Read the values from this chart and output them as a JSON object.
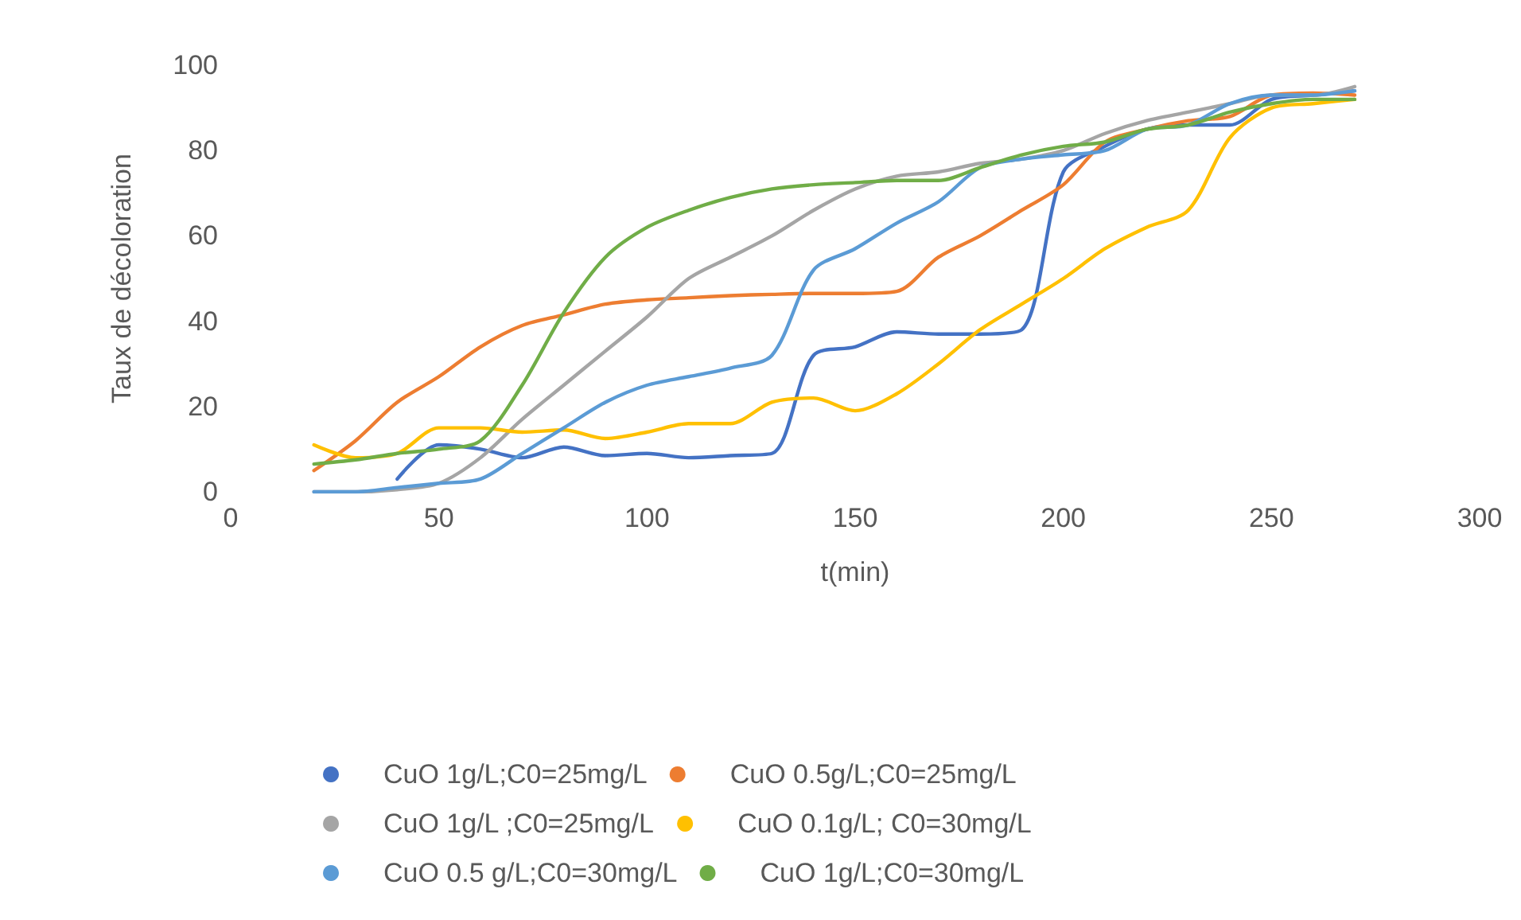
{
  "chart_data": {
    "type": "line",
    "xlabel": "t(min)",
    "ylabel": "Taux de décoloration",
    "x": [
      20,
      30,
      40,
      50,
      60,
      70,
      80,
      90,
      100,
      110,
      120,
      130,
      140,
      150,
      160,
      170,
      180,
      190,
      200,
      210,
      220,
      230,
      240,
      250,
      260,
      270
    ],
    "series": [
      {
        "name": "CuO 1g/L;C0=25mg/L",
        "color": "#4472c4",
        "values": [
          null,
          null,
          3,
          11,
          10,
          8,
          10.5,
          8.5,
          9,
          8,
          8.5,
          9,
          32,
          34,
          37.5,
          37,
          37,
          38,
          75,
          81,
          85,
          86,
          86,
          92,
          93,
          94
        ]
      },
      {
        "name": "CuO 0.5g/L;C0=25mg/L",
        "color": "#ed7d31",
        "values": [
          5,
          12,
          21,
          27,
          34,
          39,
          41.5,
          44,
          45,
          45.5,
          46,
          46.3,
          46.5,
          46.5,
          47,
          55,
          60,
          66,
          72,
          82,
          85,
          87,
          88,
          93,
          93.5,
          93
        ]
      },
      {
        "name": "CuO 1g/L ;C0=25mg/L",
        "color": "#a5a5a5",
        "values": [
          0,
          0,
          0.5,
          2,
          8,
          17,
          25,
          33,
          41,
          50,
          55,
          60,
          66,
          71,
          74,
          75,
          77,
          78,
          80,
          84,
          87,
          89,
          91,
          93,
          93,
          95
        ]
      },
      {
        "name": "CuO 0.1g/L; C0=30mg/L",
        "color": "#ffc000",
        "values": [
          11,
          8,
          9,
          15,
          15,
          14,
          14.5,
          12.5,
          14,
          16,
          16,
          21,
          22,
          19,
          23,
          30,
          38,
          44,
          50,
          57,
          62,
          66,
          83,
          90,
          91,
          92
        ]
      },
      {
        "name": "CuO 0.5 g/L;C0=30mg/L",
        "color": "#5b9bd5",
        "values": [
          0,
          0,
          1,
          2,
          3,
          9,
          15,
          21,
          25,
          27,
          29,
          32,
          52,
          57,
          63,
          68,
          76,
          78,
          79,
          80,
          85,
          86,
          91,
          93,
          93,
          94
        ]
      },
      {
        "name": "CuO 1g/L;C0=30mg/L",
        "color": "#70ad47",
        "values": [
          6.5,
          7.5,
          9,
          10,
          12,
          25,
          42,
          55,
          62,
          66,
          69,
          71,
          72,
          72.5,
          73,
          73,
          76,
          79,
          81,
          82,
          85,
          86,
          89,
          91,
          92,
          92
        ]
      }
    ],
    "xlim": [
      0,
      300
    ],
    "xticks": [
      0,
      50,
      100,
      150,
      200,
      250,
      300
    ],
    "ylim": [
      0,
      100
    ],
    "yticks": [
      0,
      20,
      40,
      60,
      80,
      100
    ],
    "grid": false,
    "legend": "bottom",
    "marker": "none",
    "line_style": "solid"
  }
}
